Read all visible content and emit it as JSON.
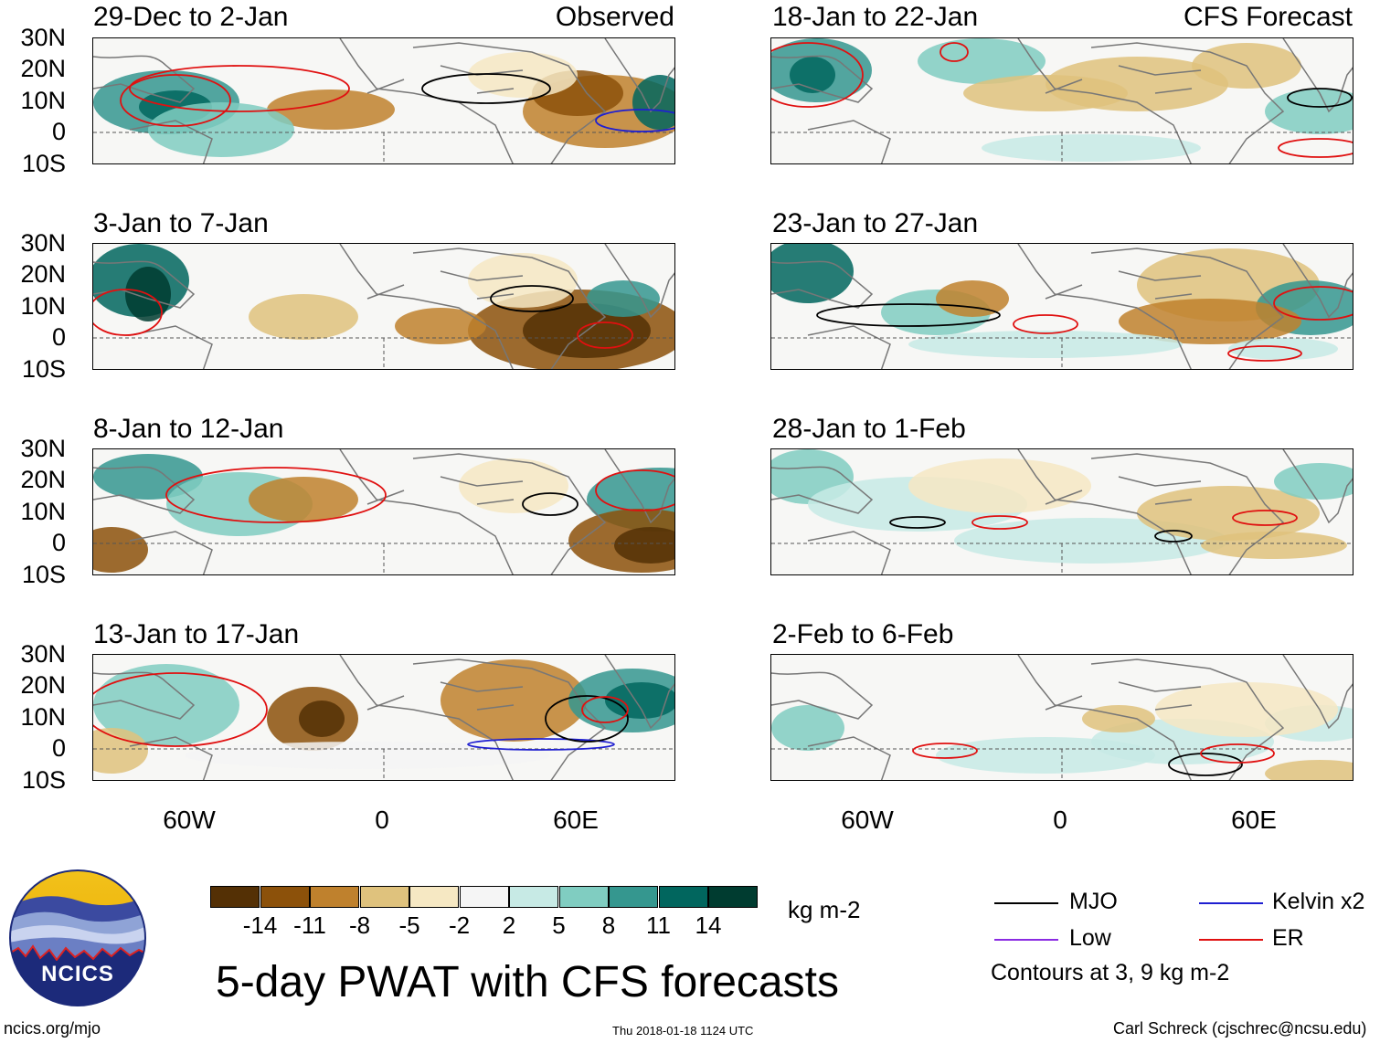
{
  "title": "5-day PWAT with CFS forecasts",
  "units_label": "kg m-2",
  "footer": {
    "site": "ncics.org/mjo",
    "timestamp": "Thu 2018-01-18 1124 UTC",
    "credit": "Carl Schreck (cjschrec@ncsu.edu)"
  },
  "logo_text": "NCICS",
  "column_tags": {
    "observed": "Observed",
    "forecast": "CFS Forecast"
  },
  "latitude_labels": [
    "30N",
    "20N",
    "10N",
    "0",
    "10S"
  ],
  "longitude_labels": [
    "60W",
    "0",
    "60E"
  ],
  "panels": {
    "observed": [
      {
        "date": "29-Dec to 2-Jan"
      },
      {
        "date": "3-Jan to 7-Jan"
      },
      {
        "date": "8-Jan to 12-Jan"
      },
      {
        "date": "13-Jan to 17-Jan"
      }
    ],
    "forecast": [
      {
        "date": "18-Jan to 22-Jan"
      },
      {
        "date": "23-Jan to 27-Jan"
      },
      {
        "date": "28-Jan to 1-Feb"
      },
      {
        "date": "2-Feb to 6-Feb"
      }
    ]
  },
  "colorbar": {
    "colors": [
      "#543005",
      "#8c510a",
      "#bf812d",
      "#dfc27d",
      "#f6e8c3",
      "#f5f5f5",
      "#c7eae5",
      "#80cdc1",
      "#35978f",
      "#01665e",
      "#003c30"
    ],
    "ticks": [
      "-14",
      "-11",
      "-8",
      "-5",
      "-2",
      "2",
      "5",
      "8",
      "11",
      "14"
    ]
  },
  "legend": {
    "items": [
      {
        "label": "MJO",
        "color": "#000000"
      },
      {
        "label": "Kelvin x2",
        "color": "#1f1fd1"
      },
      {
        "label": "Low",
        "color": "#8a2be2"
      },
      {
        "label": "ER",
        "color": "#e01010"
      }
    ],
    "note": "Contours at 3, 9 kg m-2"
  }
}
